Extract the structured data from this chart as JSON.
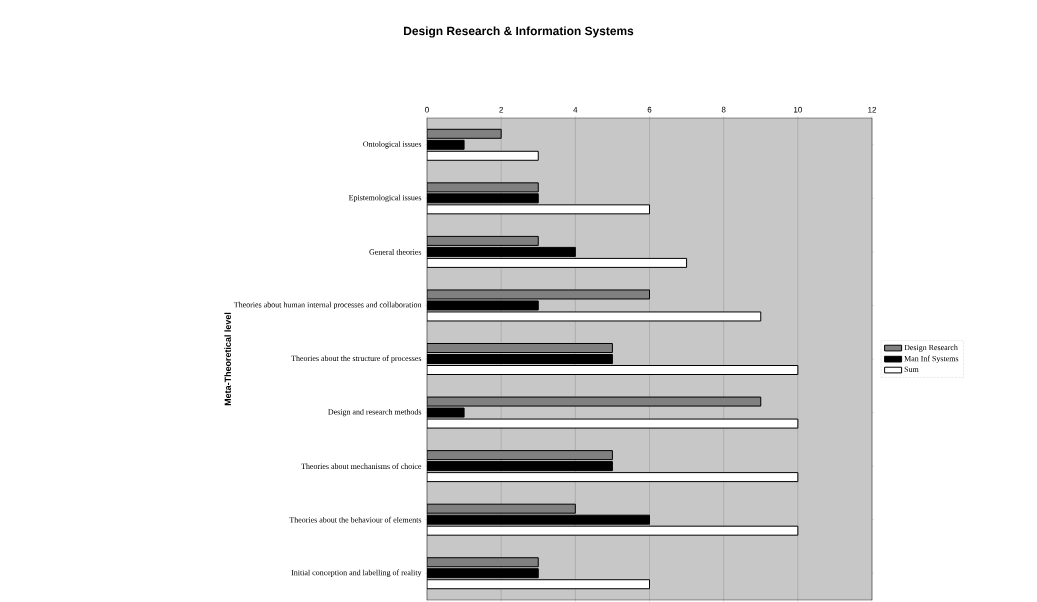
{
  "chart_data": {
    "type": "bar",
    "orientation": "horizontal",
    "title": "Design Research &  Information Systems",
    "ylabel": "Meta-Theoretical level",
    "categories": [
      "Ontological issues",
      "Epistemological issues",
      "General theories",
      "Theories about human internal processes and collaboration",
      "Theories about the structure of processes",
      "Design and research methods",
      "Theories about mechanisms of choice",
      "Theories about the behaviour of elements",
      "Initial conception and labelling of reality"
    ],
    "series": [
      {
        "name": "Design Research",
        "color": "#808080",
        "values": [
          2,
          3,
          3,
          6,
          5,
          9,
          5,
          4,
          3
        ]
      },
      {
        "name": "Man Inf Systems",
        "color": "#000000",
        "values": [
          1,
          3,
          4,
          3,
          5,
          1,
          5,
          6,
          3
        ]
      },
      {
        "name": "Sum",
        "color": "#ffffff",
        "values": [
          3,
          6,
          7,
          9,
          10,
          10,
          10,
          10,
          6
        ]
      }
    ],
    "xlim": [
      0,
      12
    ],
    "xticks": [
      0,
      2,
      4,
      6,
      8,
      10,
      12
    ],
    "grid": "x",
    "legend": "right"
  }
}
